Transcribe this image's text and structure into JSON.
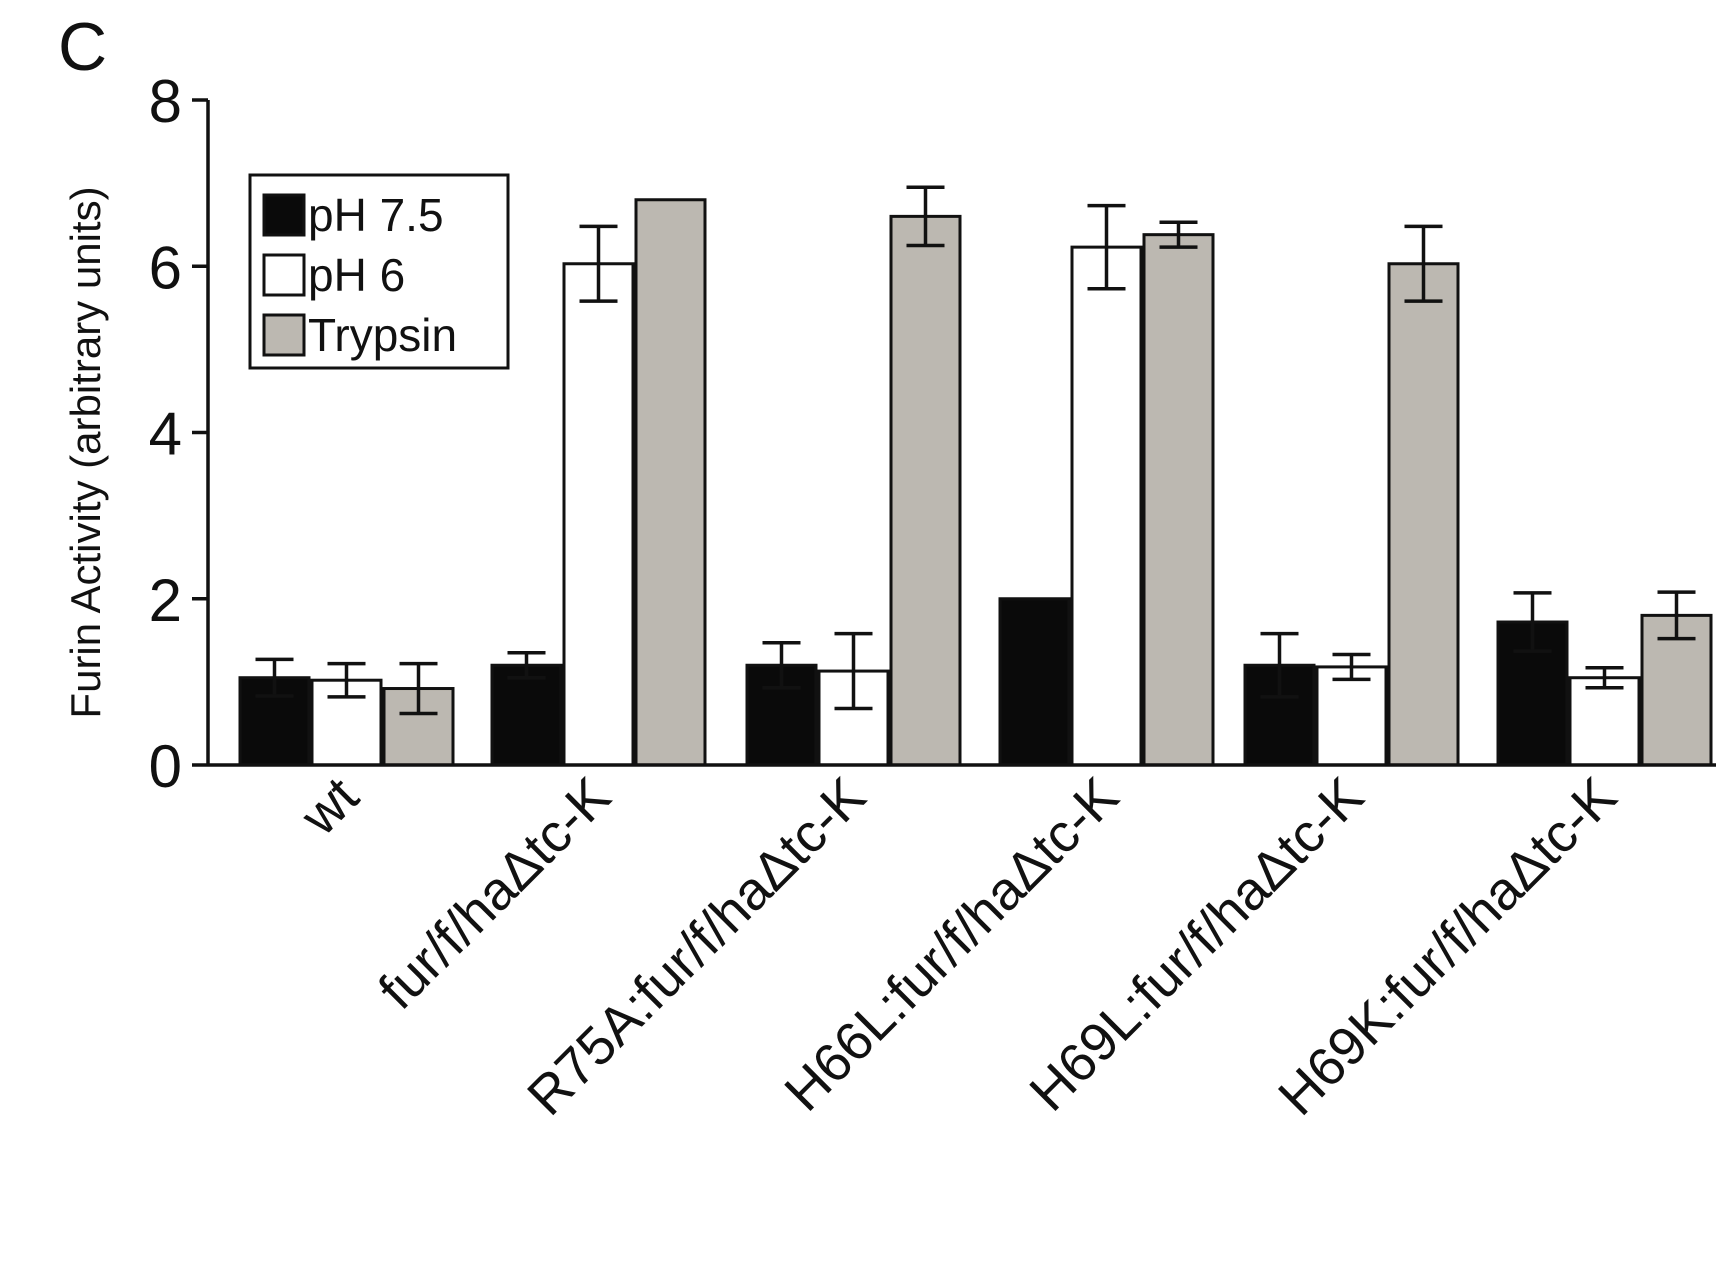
{
  "panel_label": "C",
  "chart_data": {
    "type": "bar",
    "title": "",
    "xlabel": "",
    "ylabel": "Furin Activity (arbitrary units)",
    "ylim": [
      0,
      8
    ],
    "yticks": [
      0,
      2,
      4,
      6,
      8
    ],
    "grid": false,
    "legend_position": "top-left",
    "categories": [
      "wt",
      "fur/f/haΔtc-K",
      "R75A:fur/f/haΔtc-K",
      "H66L:fur/f/haΔtc-K",
      "H69L:fur/f/haΔtc-K",
      "H69K:fur/f/haΔtc-K"
    ],
    "series": [
      {
        "name": "pH 7.5",
        "color": "#0a0a0a",
        "values": [
          1.05,
          1.2,
          1.2,
          2.0,
          1.2,
          1.72
        ],
        "errors": [
          0.22,
          0.15,
          0.27,
          null,
          0.38,
          0.35
        ]
      },
      {
        "name": "pH 6",
        "color": "#ffffff",
        "values": [
          1.02,
          6.03,
          1.13,
          6.23,
          1.18,
          1.05
        ],
        "errors": [
          0.2,
          0.45,
          0.45,
          0.5,
          0.15,
          0.12
        ]
      },
      {
        "name": "Trypsin",
        "color": "#bcb8b1",
        "values": [
          0.92,
          6.8,
          6.6,
          6.38,
          6.03,
          1.8
        ],
        "errors": [
          0.3,
          null,
          0.35,
          0.15,
          0.45,
          0.28
        ]
      }
    ]
  }
}
